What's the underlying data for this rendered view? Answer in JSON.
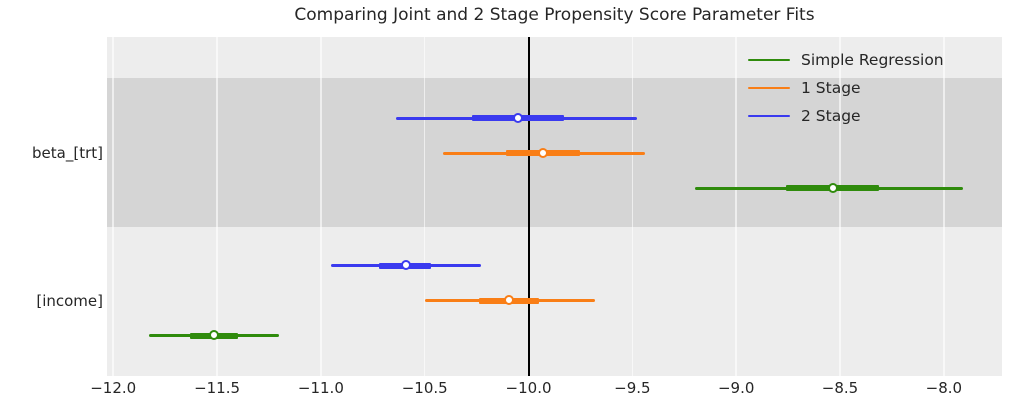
{
  "chart_data": {
    "type": "scatter",
    "variant": "forest-plot (point estimates with inner/outer confidence intervals)",
    "title": "Comparing Joint and 2 Stage Propensity Score Parameter Fits",
    "xlabel": "",
    "ylabel": "",
    "xlim": [
      -12.03,
      -7.72
    ],
    "x_ticks": [
      -12.0,
      -11.5,
      -11.0,
      -10.5,
      -10.0,
      -9.5,
      -9.0,
      -8.5,
      -8.0
    ],
    "x_tick_labels": [
      "−12.0",
      "−11.5",
      "−11.0",
      "−10.5",
      "−10.0",
      "−9.5",
      "−9.0",
      "−8.5",
      "−8.0"
    ],
    "reference_line_x": -10.0,
    "grid": true,
    "legend_position": "upper right",
    "groups": [
      "beta_[trt]",
      "[income]"
    ],
    "series": [
      {
        "name": "Simple Regression",
        "color": "#2f8b0c",
        "points": [
          {
            "group": "beta_[trt]",
            "estimate": -8.53,
            "ci_inner": [
              -8.76,
              -8.31
            ],
            "ci_outer": [
              -9.2,
              -7.91
            ]
          },
          {
            "group": "[income]",
            "estimate": -11.51,
            "ci_inner": [
              -11.63,
              -11.4
            ],
            "ci_outer": [
              -11.83,
              -11.2
            ]
          }
        ]
      },
      {
        "name": "1 Stage",
        "color": "#f97e16",
        "points": [
          {
            "group": "beta_[trt]",
            "estimate": -9.93,
            "ci_inner": [
              -10.11,
              -9.75
            ],
            "ci_outer": [
              -10.41,
              -9.44
            ]
          },
          {
            "group": "[income]",
            "estimate": -10.09,
            "ci_inner": [
              -10.24,
              -9.95
            ],
            "ci_outer": [
              -10.5,
              -9.68
            ]
          }
        ]
      },
      {
        "name": "2 Stage",
        "color": "#3a3aef",
        "points": [
          {
            "group": "beta_[trt]",
            "estimate": -10.05,
            "ci_inner": [
              -10.27,
              -9.83
            ],
            "ci_outer": [
              -10.64,
              -9.48
            ]
          },
          {
            "group": "[income]",
            "estimate": -10.59,
            "ci_inner": [
              -10.72,
              -10.47
            ],
            "ci_outer": [
              -10.95,
              -10.23
            ]
          }
        ]
      }
    ],
    "band_colors": {
      "light": "#ededed",
      "dark": "#d5d5d5"
    },
    "reference_line_color": "#000000"
  }
}
